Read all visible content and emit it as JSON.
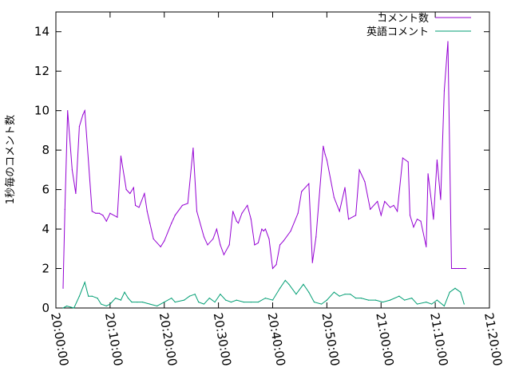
{
  "chart_data": {
    "type": "line",
    "title": "",
    "xlabel": "",
    "ylabel": "1秒毎のコメント数",
    "grid": false,
    "legend_position": "top-right",
    "xlim": [
      "20:00:00",
      "21:20:00"
    ],
    "ylim": [
      0,
      15
    ],
    "x_ticks": [
      "20:00:00",
      "20:10:00",
      "20:20:00",
      "20:30:00",
      "20:40:00",
      "20:50:00",
      "21:00:00",
      "21:10:00",
      "21:20:00"
    ],
    "y_ticks": [
      "0",
      "2",
      "4",
      "6",
      "8",
      "10",
      "12",
      "14"
    ],
    "series": [
      {
        "name": "コメント数",
        "color": "#9400d3",
        "x": [
          "20:01:20",
          "20:01:40",
          "20:02:10",
          "20:03:00",
          "20:03:40",
          "20:04:20",
          "20:05:00",
          "20:05:20",
          "20:06:40",
          "20:07:20",
          "20:07:40",
          "20:08:00",
          "20:08:40",
          "20:09:20",
          "20:10:00",
          "20:11:20",
          "20:12:00",
          "20:13:00",
          "20:13:40",
          "20:14:20",
          "20:14:40",
          "20:15:20",
          "20:16:20",
          "20:16:50",
          "20:17:20",
          "20:18:00",
          "20:19:20",
          "20:20:00",
          "20:21:20",
          "20:21:40",
          "20:22:00",
          "20:23:20",
          "20:24:20",
          "20:25:20",
          "20:26:00",
          "20:27:20",
          "20:28:00",
          "20:29:00",
          "20:29:40",
          "20:30:20",
          "20:31:00",
          "20:32:00",
          "20:32:40",
          "20:33:20",
          "20:33:40",
          "20:34:20",
          "20:35:20",
          "20:36:00",
          "20:36:40",
          "20:37:20",
          "20:38:00",
          "20:38:20",
          "20:38:40",
          "20:39:20",
          "20:40:00",
          "20:40:40",
          "20:41:20",
          "20:42:00",
          "20:43:20",
          "20:44:40",
          "20:45:20",
          "20:46:40",
          "20:47:20",
          "20:48:00",
          "20:49:20",
          "20:49:40",
          "20:50:00",
          "20:51:20",
          "20:52:20",
          "20:53:20",
          "20:54:00",
          "20:55:20",
          "20:56:00",
          "20:57:00",
          "20:58:00",
          "20:59:20",
          "21:00:00",
          "21:00:40",
          "21:01:40",
          "21:02:20",
          "21:03:00",
          "21:04:00",
          "21:05:00",
          "21:05:20",
          "21:06:00",
          "21:06:40",
          "21:07:20",
          "21:08:20",
          "21:08:40",
          "21:09:20",
          "21:09:40",
          "21:10:20",
          "21:11:00",
          "21:11:40",
          "21:12:20",
          "21:13:00",
          "21:13:40",
          "21:14:20",
          "21:15:00",
          "21:15:20",
          "21:15:40"
        ],
        "values": [
          1.0,
          5.0,
          10.0,
          7.0,
          5.8,
          9.2,
          9.8,
          10.0,
          4.9,
          4.8,
          4.8,
          4.8,
          4.7,
          4.4,
          4.8,
          4.6,
          7.7,
          6.0,
          5.8,
          6.1,
          5.2,
          5.1,
          5.8,
          4.9,
          4.3,
          3.5,
          3.1,
          3.4,
          4.3,
          4.5,
          4.7,
          5.2,
          5.3,
          8.1,
          4.9,
          3.6,
          3.2,
          3.5,
          4.0,
          3.2,
          2.7,
          3.2,
          4.9,
          4.4,
          4.3,
          4.8,
          5.2,
          4.5,
          3.2,
          3.3,
          4.0,
          3.9,
          4.0,
          3.5,
          2.0,
          2.2,
          3.2,
          3.4,
          3.9,
          4.8,
          5.9,
          6.3,
          2.3,
          3.6,
          8.2,
          7.8,
          7.5,
          5.6,
          4.9,
          6.1,
          4.5,
          4.7,
          7.0,
          6.4,
          5.0,
          5.4,
          4.7,
          5.4,
          5.1,
          5.2,
          4.9,
          7.6,
          7.4,
          4.7,
          4.1,
          4.5,
          4.4,
          3.1,
          6.8,
          5.3,
          4.5,
          7.5,
          5.5,
          11.0,
          13.5,
          2.0,
          2.0,
          2.0,
          2.0,
          2.0,
          2.0
        ]
      },
      {
        "name": "英語コメント",
        "color": "#009e73",
        "x": [
          "20:01:20",
          "20:02:00",
          "20:03:20",
          "20:04:20",
          "20:05:20",
          "20:06:00",
          "20:06:40",
          "20:07:40",
          "20:08:20",
          "20:09:20",
          "20:10:00",
          "20:11:00",
          "20:12:00",
          "20:12:40",
          "20:13:20",
          "20:14:00",
          "20:15:00",
          "20:16:00",
          "20:17:20",
          "20:18:40",
          "20:20:00",
          "20:21:20",
          "20:22:00",
          "20:23:40",
          "20:24:40",
          "20:25:40",
          "20:26:20",
          "20:27:20",
          "20:28:20",
          "20:29:20",
          "20:30:20",
          "20:31:20",
          "20:32:20",
          "20:33:20",
          "20:34:40",
          "20:36:00",
          "20:37:20",
          "20:38:40",
          "20:40:00",
          "20:41:20",
          "20:42:20",
          "20:43:00",
          "20:44:20",
          "20:45:40",
          "20:46:40",
          "20:47:40",
          "20:49:00",
          "20:50:00",
          "20:51:20",
          "20:52:20",
          "20:53:20",
          "20:54:20",
          "20:55:20",
          "20:56:20",
          "20:57:40",
          "20:59:00",
          "21:00:20",
          "21:01:40",
          "21:03:20",
          "21:04:20",
          "21:05:40",
          "21:06:40",
          "21:08:20",
          "21:09:20",
          "21:10:20",
          "21:11:40",
          "21:12:40",
          "21:13:40",
          "21:14:40",
          "21:15:20"
        ],
        "values": [
          0.0,
          0.1,
          0.0,
          0.6,
          1.3,
          0.6,
          0.6,
          0.5,
          0.2,
          0.1,
          0.2,
          0.5,
          0.4,
          0.8,
          0.5,
          0.3,
          0.3,
          0.3,
          0.2,
          0.1,
          0.3,
          0.5,
          0.3,
          0.4,
          0.6,
          0.7,
          0.3,
          0.2,
          0.5,
          0.3,
          0.7,
          0.4,
          0.3,
          0.4,
          0.3,
          0.3,
          0.3,
          0.5,
          0.4,
          1.0,
          1.4,
          1.2,
          0.7,
          1.2,
          0.8,
          0.3,
          0.2,
          0.4,
          0.8,
          0.6,
          0.7,
          0.7,
          0.5,
          0.5,
          0.4,
          0.4,
          0.3,
          0.4,
          0.6,
          0.4,
          0.5,
          0.2,
          0.3,
          0.2,
          0.4,
          0.1,
          0.8,
          1.0,
          0.8,
          0.2
        ]
      }
    ]
  }
}
